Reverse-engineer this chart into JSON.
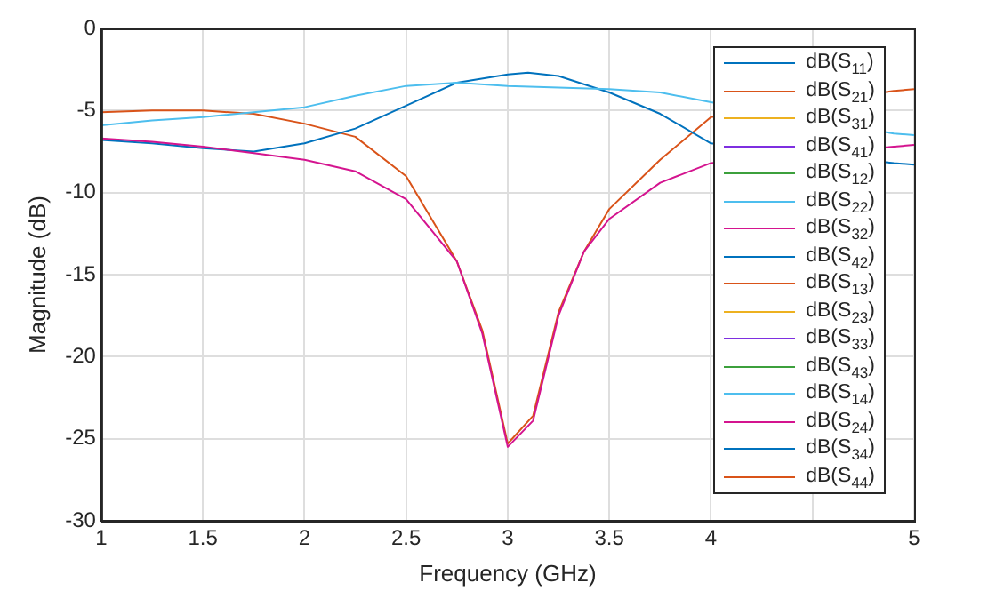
{
  "chart_data": {
    "type": "line",
    "xlabel": "Frequency (GHz)",
    "ylabel": "Magnitude (dB)",
    "xlim": [
      1,
      5
    ],
    "xticks": [
      1,
      1.5,
      2,
      2.5,
      3,
      3.5,
      4,
      {
        "value": 4.5,
        "label": null
      },
      5
    ],
    "ylim": [
      -30,
      0
    ],
    "yticks": [
      -30,
      -25,
      -20,
      -15,
      -10,
      -5,
      0
    ],
    "grid": true,
    "legend": "top right",
    "marker": "none",
    "line_style": "solid",
    "series": [
      {
        "name": "dB(S$_{11}$)",
        "color": "#0072bd",
        "values": [
          null
        ]
      },
      {
        "name": "dB(S$_{21}$)",
        "color": "#d95319",
        "values": [
          null
        ]
      },
      {
        "name": "dB(S$_{31}$)",
        "color": "#edb120",
        "values": [
          null
        ]
      },
      {
        "name": "dB(S$_{41}$)",
        "color": "#7e2fe0",
        "values": [
          null
        ]
      },
      {
        "name": "dB(S$_{12}$)",
        "color": "#3ca03c",
        "values": [
          null
        ]
      },
      {
        "name": "dB(S$_{22}$)",
        "color": "#4dbeee",
        "values": [
          null
        ]
      },
      {
        "name": "dB(S$_{32}$)",
        "color": "#d4148f",
        "values": [
          null
        ]
      },
      {
        "name": "dB(S$_{42}$)",
        "color": "#0072bd",
        "values": [
          null
        ]
      },
      {
        "name": "dB(S$_{13}$)",
        "color": "#d95319",
        "values": [
          null
        ]
      },
      {
        "name": "dB(S$_{23}$)",
        "color": "#edb120",
        "values": [
          null
        ]
      },
      {
        "name": "dB(S$_{33}$)",
        "color": "#7e2fe0",
        "values": [
          null
        ]
      },
      {
        "name": "dB(S$_{43}$)",
        "color": "#3ca03c",
        "values": [
          null
        ]
      },
      {
        "name": "dB(S$_{14}$)",
        "color": "#4dbeee",
        "x": [
          1,
          1.25,
          1.5,
          2,
          2.25,
          2.5,
          2.75,
          3,
          3.25,
          3.5,
          3.75,
          4,
          4.9,
          5
        ],
        "values": [
          -5.9,
          -5.6,
          -5.4,
          -4.8,
          -4.1,
          -3.5,
          -3.3,
          -3.5,
          -3.6,
          -3.7,
          -3.9,
          -4.5,
          -6.4,
          -6.5
        ]
      },
      {
        "name": "dB(S$_{24}$)",
        "color": "#d4148f",
        "x": [
          1,
          1.25,
          1.5,
          1.75,
          2,
          2.25,
          2.5,
          2.625,
          2.75,
          2.875,
          3,
          3.125,
          3.25,
          3.375,
          3.5,
          3.75,
          4,
          4.9,
          5
        ],
        "values": [
          -6.7,
          -6.9,
          -7.2,
          -7.6,
          -8.0,
          -8.7,
          -10.4,
          -12.3,
          -14.2,
          -18.6,
          -25.5,
          -23.9,
          -17.5,
          -13.6,
          -11.6,
          -9.4,
          -8.2,
          -7.2,
          -7.1
        ]
      },
      {
        "name": "dB(S$_{34}$)",
        "color": "#0072bd",
        "x": [
          1,
          1.25,
          1.5,
          1.75,
          2,
          2.25,
          2.5,
          2.75,
          3,
          3.1,
          3.25,
          3.5,
          3.75,
          4,
          4.9,
          5
        ],
        "values": [
          -6.8,
          -7.0,
          -7.3,
          -7.5,
          -7.0,
          -6.1,
          -4.7,
          -3.3,
          -2.8,
          -2.7,
          -2.9,
          -3.9,
          -5.2,
          -7.0,
          -8.2,
          -8.3
        ]
      },
      {
        "name": "dB(S$_{44}$)",
        "color": "#d95319",
        "x": [
          1,
          1.25,
          1.5,
          1.75,
          2,
          2.25,
          2.5,
          2.625,
          2.75,
          2.875,
          3,
          3.125,
          3.25,
          3.375,
          3.5,
          3.75,
          4,
          4.9,
          5
        ],
        "values": [
          -5.1,
          -5.0,
          -5.0,
          -5.2,
          -5.8,
          -6.6,
          -9.0,
          -11.6,
          -14.2,
          -18.4,
          -25.3,
          -23.6,
          -17.3,
          -13.6,
          -11.0,
          -8.0,
          -5.4,
          -3.8,
          -3.7
        ]
      }
    ]
  }
}
